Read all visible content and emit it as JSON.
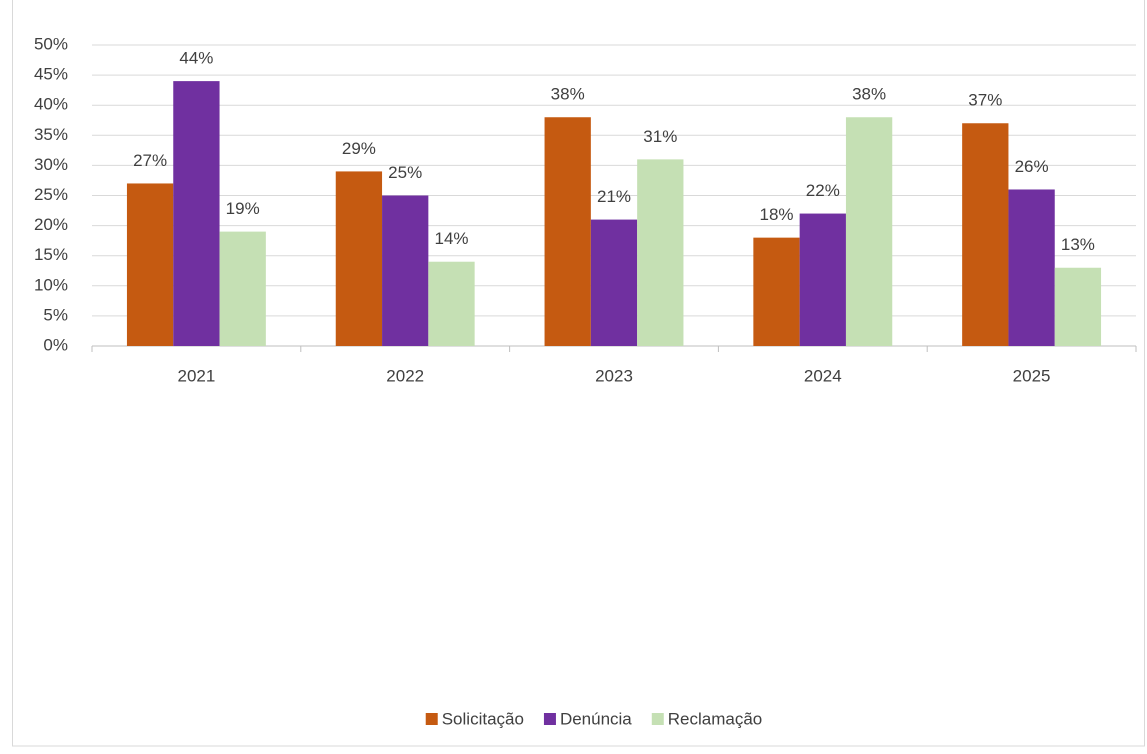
{
  "chart_data": {
    "type": "bar",
    "categories": [
      "2021",
      "2022",
      "2023",
      "2024",
      "2025"
    ],
    "series": [
      {
        "name": "Solicitação",
        "color": "#c55a11",
        "values": [
          27,
          29,
          38,
          18,
          37
        ],
        "value_labels": [
          "27%",
          "29%",
          "38%",
          "18%",
          "37%"
        ]
      },
      {
        "name": "Denúncia",
        "color": "#7030a0",
        "values": [
          44,
          25,
          21,
          22,
          26
        ],
        "value_labels": [
          "44%",
          "25%",
          "21%",
          "22%",
          "26%"
        ]
      },
      {
        "name": "Reclamação",
        "color": "#c5e0b4",
        "values": [
          19,
          14,
          31,
          38,
          13
        ],
        "value_labels": [
          "19%",
          "14%",
          "31%",
          "38%",
          "13%"
        ]
      }
    ],
    "ylim": [
      0,
      50
    ],
    "yticks": [
      {
        "value": 0,
        "label": "0%"
      },
      {
        "value": 5,
        "label": "5%"
      },
      {
        "value": 10,
        "label": "10%"
      },
      {
        "value": 15,
        "label": "15%"
      },
      {
        "value": 20,
        "label": "20%"
      },
      {
        "value": 25,
        "label": "25%"
      },
      {
        "value": 30,
        "label": "30%"
      },
      {
        "value": 35,
        "label": "35%"
      },
      {
        "value": 40,
        "label": "40%"
      },
      {
        "value": 45,
        "label": "45%"
      },
      {
        "value": 50,
        "label": "50%"
      }
    ],
    "grid": true,
    "legend": "bottom"
  }
}
